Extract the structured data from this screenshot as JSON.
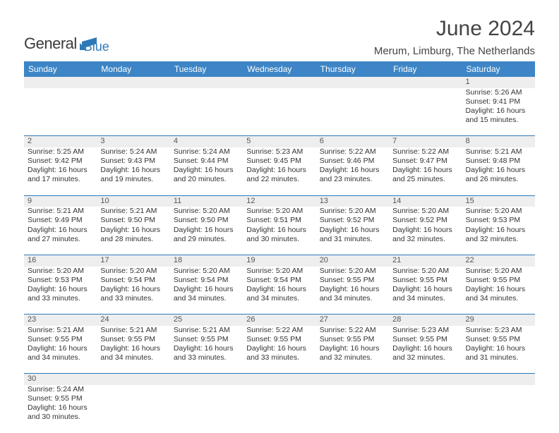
{
  "logo": {
    "text1": "General",
    "text2": "Blue"
  },
  "title": "June 2024",
  "location": "Merum, Limburg, The Netherlands",
  "colors": {
    "header_bg": "#3d85c6",
    "header_fg": "#ffffff",
    "daynum_bg": "#eeeeee",
    "rule": "#2d79b8",
    "logo_accent": "#2d79b8"
  },
  "weekdays": [
    "Sunday",
    "Monday",
    "Tuesday",
    "Wednesday",
    "Thursday",
    "Friday",
    "Saturday"
  ],
  "weeks": [
    [
      null,
      null,
      null,
      null,
      null,
      null,
      {
        "d": "1",
        "sr": "5:26 AM",
        "ss": "9:41 PM",
        "dl": "16 hours and 15 minutes."
      }
    ],
    [
      {
        "d": "2",
        "sr": "5:25 AM",
        "ss": "9:42 PM",
        "dl": "16 hours and 17 minutes."
      },
      {
        "d": "3",
        "sr": "5:24 AM",
        "ss": "9:43 PM",
        "dl": "16 hours and 19 minutes."
      },
      {
        "d": "4",
        "sr": "5:24 AM",
        "ss": "9:44 PM",
        "dl": "16 hours and 20 minutes."
      },
      {
        "d": "5",
        "sr": "5:23 AM",
        "ss": "9:45 PM",
        "dl": "16 hours and 22 minutes."
      },
      {
        "d": "6",
        "sr": "5:22 AM",
        "ss": "9:46 PM",
        "dl": "16 hours and 23 minutes."
      },
      {
        "d": "7",
        "sr": "5:22 AM",
        "ss": "9:47 PM",
        "dl": "16 hours and 25 minutes."
      },
      {
        "d": "8",
        "sr": "5:21 AM",
        "ss": "9:48 PM",
        "dl": "16 hours and 26 minutes."
      }
    ],
    [
      {
        "d": "9",
        "sr": "5:21 AM",
        "ss": "9:49 PM",
        "dl": "16 hours and 27 minutes."
      },
      {
        "d": "10",
        "sr": "5:21 AM",
        "ss": "9:50 PM",
        "dl": "16 hours and 28 minutes."
      },
      {
        "d": "11",
        "sr": "5:20 AM",
        "ss": "9:50 PM",
        "dl": "16 hours and 29 minutes."
      },
      {
        "d": "12",
        "sr": "5:20 AM",
        "ss": "9:51 PM",
        "dl": "16 hours and 30 minutes."
      },
      {
        "d": "13",
        "sr": "5:20 AM",
        "ss": "9:52 PM",
        "dl": "16 hours and 31 minutes."
      },
      {
        "d": "14",
        "sr": "5:20 AM",
        "ss": "9:52 PM",
        "dl": "16 hours and 32 minutes."
      },
      {
        "d": "15",
        "sr": "5:20 AM",
        "ss": "9:53 PM",
        "dl": "16 hours and 32 minutes."
      }
    ],
    [
      {
        "d": "16",
        "sr": "5:20 AM",
        "ss": "9:53 PM",
        "dl": "16 hours and 33 minutes."
      },
      {
        "d": "17",
        "sr": "5:20 AM",
        "ss": "9:54 PM",
        "dl": "16 hours and 33 minutes."
      },
      {
        "d": "18",
        "sr": "5:20 AM",
        "ss": "9:54 PM",
        "dl": "16 hours and 34 minutes."
      },
      {
        "d": "19",
        "sr": "5:20 AM",
        "ss": "9:54 PM",
        "dl": "16 hours and 34 minutes."
      },
      {
        "d": "20",
        "sr": "5:20 AM",
        "ss": "9:55 PM",
        "dl": "16 hours and 34 minutes."
      },
      {
        "d": "21",
        "sr": "5:20 AM",
        "ss": "9:55 PM",
        "dl": "16 hours and 34 minutes."
      },
      {
        "d": "22",
        "sr": "5:20 AM",
        "ss": "9:55 PM",
        "dl": "16 hours and 34 minutes."
      }
    ],
    [
      {
        "d": "23",
        "sr": "5:21 AM",
        "ss": "9:55 PM",
        "dl": "16 hours and 34 minutes."
      },
      {
        "d": "24",
        "sr": "5:21 AM",
        "ss": "9:55 PM",
        "dl": "16 hours and 34 minutes."
      },
      {
        "d": "25",
        "sr": "5:21 AM",
        "ss": "9:55 PM",
        "dl": "16 hours and 33 minutes."
      },
      {
        "d": "26",
        "sr": "5:22 AM",
        "ss": "9:55 PM",
        "dl": "16 hours and 33 minutes."
      },
      {
        "d": "27",
        "sr": "5:22 AM",
        "ss": "9:55 PM",
        "dl": "16 hours and 32 minutes."
      },
      {
        "d": "28",
        "sr": "5:23 AM",
        "ss": "9:55 PM",
        "dl": "16 hours and 32 minutes."
      },
      {
        "d": "29",
        "sr": "5:23 AM",
        "ss": "9:55 PM",
        "dl": "16 hours and 31 minutes."
      }
    ],
    [
      {
        "d": "30",
        "sr": "5:24 AM",
        "ss": "9:55 PM",
        "dl": "16 hours and 30 minutes."
      },
      null,
      null,
      null,
      null,
      null,
      null
    ]
  ],
  "labels": {
    "sunrise": "Sunrise:",
    "sunset": "Sunset:",
    "daylight": "Daylight:"
  }
}
